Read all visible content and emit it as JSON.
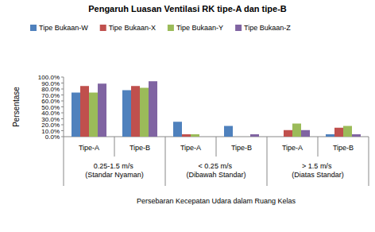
{
  "chart_data": {
    "type": "bar",
    "title": "Pengaruh Luasan Ventilasi RK tipe-A dan tipe-B",
    "y_label": "Persentase",
    "x_label": "Persebaran Kecepatan Udara dalam Ruang Kelas",
    "categories": [
      "Tipe-A",
      "Tipe-B",
      "Tipe-A",
      "Tipe-B",
      "Tipe-A",
      "Tipe-B"
    ],
    "category_groups": [
      "0.25-1.5 m/s (Standar Nyaman)",
      "< 0.25 m/s (Dibawah Standar)",
      "> 1.5 m/s (Diatas Standar)"
    ],
    "series": [
      {
        "name": "Tipe Bukaan-W",
        "color": "#4f81bd",
        "values": [
          74,
          78,
          25,
          18,
          0,
          4
        ]
      },
      {
        "name": "Tipe Bukaan-X",
        "color": "#c0504d",
        "values": [
          85,
          85,
          4,
          0,
          11,
          15
        ]
      },
      {
        "name": "Tipe Bukaan-Y",
        "color": "#9bbb59",
        "values": [
          74,
          82,
          4,
          0,
          22,
          18
        ]
      },
      {
        "name": "Tipe Bukaan-Z",
        "color": "#8064a2",
        "values": [
          89,
          93,
          0,
          4,
          11,
          4
        ]
      }
    ],
    "ylim": [
      0,
      100
    ],
    "yticks": [
      {
        "value": 0,
        "label": "0.0%"
      },
      {
        "value": 10,
        "label": "10.0%"
      },
      {
        "value": 20,
        "label": "20.0%"
      },
      {
        "value": 30,
        "label": "30.0%"
      },
      {
        "value": 40,
        "label": "40.0%"
      },
      {
        "value": 50,
        "label": "50.0%"
      },
      {
        "value": 60,
        "label": "60.0%"
      },
      {
        "value": 70,
        "label": "70.0%"
      },
      {
        "value": 80,
        "label": "80.0%"
      },
      {
        "value": 90,
        "label": "90.0%"
      },
      {
        "value": 100,
        "label": "100.0%"
      }
    ],
    "grid": false,
    "legend": "top"
  }
}
